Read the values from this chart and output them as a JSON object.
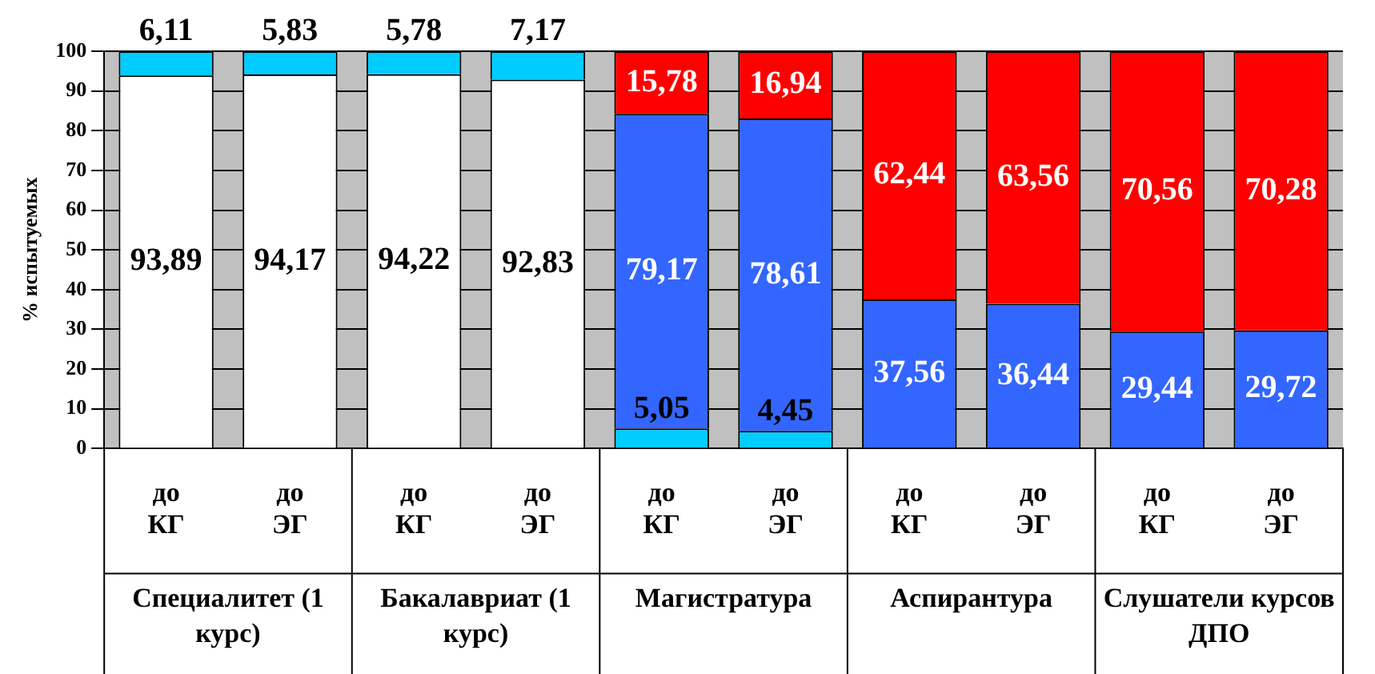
{
  "chart_data": {
    "type": "bar",
    "stacked": true,
    "ylabel": "% испытуемых",
    "categories": [
      "до КГ",
      "до ЭГ",
      "до КГ",
      "до ЭГ",
      "до КГ",
      "до ЭГ",
      "до КГ",
      "до ЭГ",
      "до КГ",
      "до ЭГ"
    ],
    "annotations": [
      "Специалитет (1 курс)",
      "Бакалавриат (1 курс)",
      "Магистратура",
      "Аспирантура",
      "Слушатели курсов ДПО"
    ],
    "series": [
      {
        "color": "#00ccff",
        "values": [
          null,
          null,
          null,
          null,
          5.05,
          4.45,
          null,
          null,
          null,
          null
        ],
        "value_labels": [
          null,
          null,
          null,
          null,
          "5,05",
          "4,45",
          null,
          null,
          null,
          null
        ]
      },
      {
        "color": "#ffffff",
        "values": [
          93.89,
          94.17,
          94.22,
          92.83,
          null,
          null,
          null,
          null,
          null,
          null
        ],
        "value_labels": [
          "93,89",
          "94,17",
          "94,22",
          "92,83",
          null,
          null,
          null,
          null,
          null,
          null
        ]
      },
      {
        "color": "#3366ff",
        "values": [
          null,
          null,
          null,
          null,
          79.17,
          78.61,
          37.56,
          36.44,
          29.44,
          29.72
        ],
        "value_labels": [
          null,
          null,
          null,
          null,
          "79,17",
          "78,61",
          "37,56",
          "36,44",
          "29,44",
          "29,72"
        ]
      },
      {
        "color": "#ff0000",
        "values": [
          null,
          null,
          null,
          null,
          15.78,
          16.94,
          62.44,
          63.56,
          70.56,
          70.28
        ],
        "value_labels": [
          null,
          null,
          null,
          null,
          "15,78",
          "16,94",
          "62,44",
          "63,56",
          "70,56",
          "70,28"
        ]
      },
      {
        "color": "#00ccff",
        "values": [
          6.11,
          5.83,
          5.78,
          7.17,
          null,
          null,
          null,
          null,
          null,
          null
        ],
        "value_labels": [
          "6,11",
          "5,83",
          "5,78",
          "7,17",
          null,
          null,
          null,
          null,
          null,
          null
        ]
      }
    ],
    "ylim": [
      0,
      100
    ],
    "yticks": [
      0,
      10,
      20,
      30,
      40,
      50,
      60,
      70,
      80,
      90,
      100
    ],
    "grid": "y",
    "legend": false
  }
}
